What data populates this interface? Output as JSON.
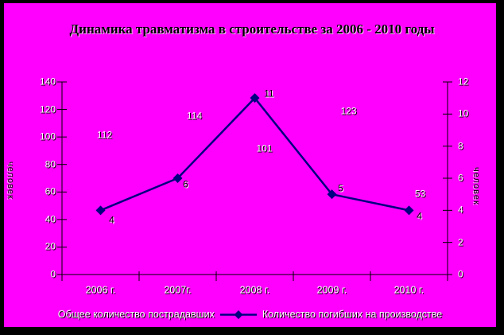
{
  "window": {
    "frame_color": "#000000",
    "panel_bg": "#ff00ff"
  },
  "chart_data": {
    "type": "line",
    "title": "Динамика травматизма в строительстве за 2006 - 2010 годы",
    "categories": [
      "2006 г.",
      "2007г.",
      "2008 г.",
      "2009 г.",
      "2010 г."
    ],
    "series": [
      {
        "name": "Общее количество пострадавших",
        "axis": "left",
        "display": "labels-only",
        "marker": "none",
        "color": "#ff00ff",
        "label_color": "#ffffff",
        "values": [
          112,
          114,
          101,
          123,
          53
        ]
      },
      {
        "name": "Количество погибших на производстве",
        "axis": "right",
        "display": "line-markers",
        "marker": "diamond",
        "color": "#000080",
        "label_color": "#000000",
        "values": [
          4,
          6,
          11,
          5,
          4
        ]
      }
    ],
    "left_axis": {
      "title": "человек",
      "min": 0,
      "max": 140,
      "ticks": [
        0,
        20,
        40,
        60,
        80,
        100,
        120,
        140
      ]
    },
    "right_axis": {
      "title": "человек",
      "min": 0,
      "max": 12,
      "ticks": [
        0,
        2,
        4,
        6,
        8,
        10,
        12
      ]
    },
    "grid": false,
    "legend_position": "bottom",
    "axis_color": "#000000"
  }
}
